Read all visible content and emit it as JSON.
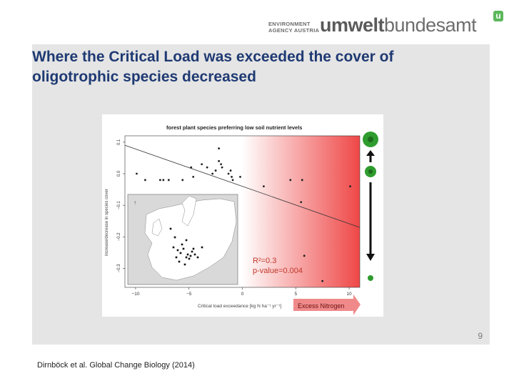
{
  "header": {
    "logo_small_line1": "ENVIRONMENT",
    "logo_small_line2": "AGENCY AUSTRIA",
    "logo_part_bold": "umwelt",
    "logo_part_light": "bundesamt",
    "logo_mark": "u"
  },
  "slide": {
    "title": "Where the Critical Load was exceeded the cover of oligotrophic species decreased",
    "page_number": "9",
    "citation": "Dirnböck et al. Global Change Biology (2014)"
  },
  "colors": {
    "title": "#1f3a73",
    "panel": "#e5e5e5",
    "gradient_end": "#ef4747",
    "arrow": "#f08a8a",
    "annotation": "#c0392b",
    "plant": "#2e9c2e"
  },
  "chart_data": {
    "type": "scatter",
    "title": "forest plant species preferring low soil nutrient levels",
    "xlabel": "Critical load exceedance [kg N ha⁻¹ yr⁻¹]",
    "ylabel": "increase/decrease in species cover",
    "xlim": [
      -11,
      11
    ],
    "ylim": [
      -0.36,
      0.12
    ],
    "xticks": [
      -10,
      -5,
      0,
      5,
      10
    ],
    "xtick_labels": [
      "−10",
      "−5",
      "0",
      "5",
      "10"
    ],
    "yticks": [
      0.1,
      0.0,
      -0.1,
      -0.2,
      -0.3
    ],
    "ytick_labels": [
      "0.1",
      "0.0",
      "−0.1",
      "−0.2",
      "−0.3"
    ],
    "grid": false,
    "regression": {
      "x": [
        -11,
        11
      ],
      "y": [
        0.09,
        -0.17
      ]
    },
    "points": [
      {
        "x": -9.9,
        "y": 0.0
      },
      {
        "x": -9.1,
        "y": -0.02
      },
      {
        "x": -7.4,
        "y": -0.02
      },
      {
        "x": -7.7,
        "y": -0.02
      },
      {
        "x": -6.9,
        "y": -0.02
      },
      {
        "x": -5.6,
        "y": -0.02
      },
      {
        "x": -4.8,
        "y": 0.02
      },
      {
        "x": -4.6,
        "y": -0.01
      },
      {
        "x": -3.8,
        "y": 0.03
      },
      {
        "x": -3.3,
        "y": 0.02
      },
      {
        "x": -2.8,
        "y": 0.0
      },
      {
        "x": -2.5,
        "y": 0.01
      },
      {
        "x": -2.2,
        "y": 0.04
      },
      {
        "x": -2.0,
        "y": 0.03
      },
      {
        "x": -1.9,
        "y": 0.02
      },
      {
        "x": -2.2,
        "y": 0.08
      },
      {
        "x": -1.3,
        "y": 0.0
      },
      {
        "x": -1.0,
        "y": -0.01
      },
      {
        "x": -0.9,
        "y": -0.02
      },
      {
        "x": -0.2,
        "y": -0.01
      },
      {
        "x": -1.1,
        "y": 0.01
      },
      {
        "x": 2.0,
        "y": -0.04
      },
      {
        "x": 4.5,
        "y": -0.02
      },
      {
        "x": 5.6,
        "y": -0.02
      },
      {
        "x": 5.5,
        "y": -0.09
      },
      {
        "x": 10.1,
        "y": -0.04
      },
      {
        "x": 5.8,
        "y": -0.26
      },
      {
        "x": 7.5,
        "y": -0.34
      }
    ],
    "annotation_r2": "R²=0.3",
    "annotation_p": "p-value=0.004",
    "arrow_label": "Excess Nitrogen"
  }
}
